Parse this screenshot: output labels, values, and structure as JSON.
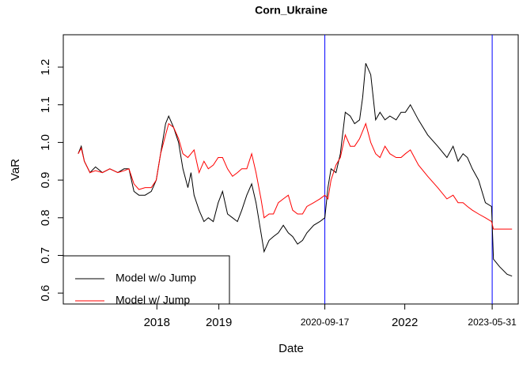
{
  "chart_data": {
    "type": "line",
    "title": "Corn_Ukraine",
    "xlabel": "Date",
    "ylabel": "VaR",
    "x": [
      2016.73,
      2016.78,
      2016.83,
      2016.92,
      2017.01,
      2017.12,
      2017.24,
      2017.37,
      2017.47,
      2017.55,
      2017.63,
      2017.71,
      2017.81,
      2017.91,
      2017.99,
      2018.06,
      2018.14,
      2018.19,
      2018.27,
      2018.35,
      2018.42,
      2018.5,
      2018.55,
      2018.6,
      2018.68,
      2018.76,
      2018.83,
      2018.91,
      2018.99,
      2019.06,
      2019.14,
      2019.22,
      2019.3,
      2019.37,
      2019.45,
      2019.53,
      2019.6,
      2019.68,
      2019.73,
      2019.81,
      2019.88,
      2019.96,
      2020.04,
      2020.12,
      2020.19,
      2020.27,
      2020.35,
      2020.42,
      2020.53,
      2020.63,
      2020.71,
      2020.76,
      2020.81,
      2020.89,
      2020.96,
      2021.04,
      2021.12,
      2021.19,
      2021.27,
      2021.32,
      2021.37,
      2021.45,
      2021.53,
      2021.6,
      2021.68,
      2021.76,
      2021.86,
      2021.94,
      2022.01,
      2022.09,
      2022.22,
      2022.37,
      2022.53,
      2022.68,
      2022.78,
      2022.86,
      2022.94,
      2023.01,
      2023.09,
      2023.19,
      2023.3,
      2023.4,
      2023.43,
      2023.53,
      2023.65,
      2023.73
    ],
    "series": [
      {
        "name": "Model w/o Jump",
        "color": "#000000",
        "values": [
          0.97,
          0.99,
          0.95,
          0.92,
          0.935,
          0.92,
          0.93,
          0.92,
          0.93,
          0.93,
          0.87,
          0.86,
          0.86,
          0.87,
          0.9,
          0.97,
          1.05,
          1.07,
          1.04,
          1.0,
          0.93,
          0.88,
          0.92,
          0.86,
          0.82,
          0.79,
          0.8,
          0.79,
          0.84,
          0.87,
          0.81,
          0.8,
          0.79,
          0.82,
          0.86,
          0.89,
          0.84,
          0.76,
          0.71,
          0.74,
          0.75,
          0.76,
          0.78,
          0.76,
          0.75,
          0.73,
          0.74,
          0.76,
          0.78,
          0.79,
          0.8,
          0.88,
          0.93,
          0.92,
          0.97,
          1.08,
          1.07,
          1.05,
          1.06,
          1.12,
          1.21,
          1.18,
          1.06,
          1.08,
          1.06,
          1.07,
          1.06,
          1.08,
          1.08,
          1.1,
          1.06,
          1.02,
          0.99,
          0.96,
          0.99,
          0.95,
          0.97,
          0.96,
          0.93,
          0.9,
          0.84,
          0.83,
          0.69,
          0.67,
          0.65,
          0.645
        ]
      },
      {
        "name": "Model w/ Jump",
        "color": "#ff0000",
        "values": [
          0.97,
          0.985,
          0.95,
          0.92,
          0.925,
          0.92,
          0.93,
          0.92,
          0.925,
          0.93,
          0.89,
          0.875,
          0.88,
          0.88,
          0.9,
          0.97,
          1.02,
          1.05,
          1.04,
          1.01,
          0.97,
          0.96,
          0.97,
          0.98,
          0.92,
          0.95,
          0.93,
          0.94,
          0.96,
          0.96,
          0.93,
          0.91,
          0.92,
          0.93,
          0.93,
          0.97,
          0.92,
          0.85,
          0.8,
          0.81,
          0.81,
          0.84,
          0.85,
          0.86,
          0.82,
          0.81,
          0.81,
          0.83,
          0.84,
          0.85,
          0.86,
          0.85,
          0.9,
          0.94,
          0.96,
          1.02,
          0.99,
          0.99,
          1.01,
          1.03,
          1.05,
          1.0,
          0.97,
          0.96,
          0.99,
          0.97,
          0.96,
          0.96,
          0.97,
          0.98,
          0.94,
          0.91,
          0.88,
          0.85,
          0.86,
          0.84,
          0.84,
          0.83,
          0.82,
          0.81,
          0.8,
          0.79,
          0.77,
          0.77,
          0.77,
          0.77
        ]
      }
    ],
    "xlim": [
      2016.49,
      2023.83
    ],
    "xticks": [
      2018,
      2019,
      {
        "value": 2020.71,
        "label": "2020-09-17"
      },
      2022,
      {
        "value": 2023.41,
        "label": "2023-05-31"
      }
    ],
    "ylim": [
      0.571,
      1.286
    ],
    "yticks": [
      0.6,
      0.7,
      0.8,
      0.9,
      {
        "value": 1,
        "label": "1.0"
      },
      1.1,
      1.2
    ],
    "vlines": [
      2020.71,
      2023.41
    ],
    "vline_color": "#0000ff",
    "legend": "bottomleft",
    "grid": false
  }
}
